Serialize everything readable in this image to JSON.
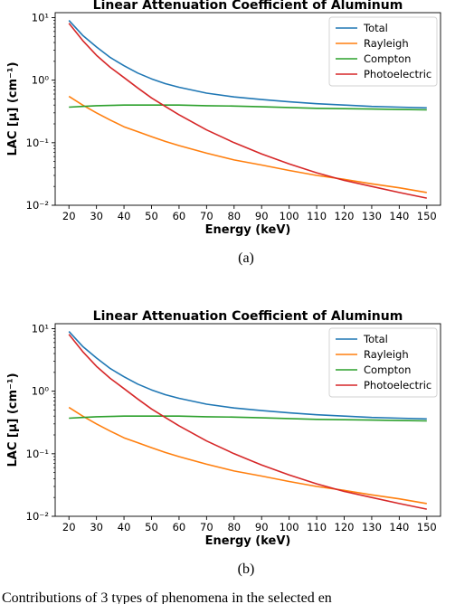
{
  "panel_labels": [
    "(a)",
    "(b)"
  ],
  "caption": "Contributions of 3 types of phenomena in the selected en",
  "colors": {
    "Total": "#1f77b4",
    "Rayleigh": "#ff7f0e",
    "Compton": "#2ca02c",
    "Photoelectric": "#d62728"
  },
  "chart_data": [
    {
      "type": "line",
      "title": "Linear Attenuation Coefficient of Aluminum",
      "xlabel": "Energy (keV)",
      "ylabel": "LAC [μ] (cm⁻¹)",
      "yscale": "log",
      "xlim": [
        15,
        155
      ],
      "ylim": [
        0.01,
        12
      ],
      "xticks": [
        20,
        30,
        40,
        50,
        60,
        70,
        80,
        90,
        100,
        110,
        120,
        130,
        140,
        150
      ],
      "yticks": [
        0.01,
        0.1,
        1,
        10
      ],
      "ytick_labels": [
        "10⁻²",
        "10⁻¹",
        "10⁰",
        "10¹"
      ],
      "legend_position": "top-right",
      "x": [
        20,
        25,
        30,
        35,
        40,
        45,
        50,
        55,
        60,
        70,
        80,
        90,
        100,
        110,
        120,
        130,
        140,
        150
      ],
      "series": [
        {
          "name": "Total",
          "values": [
            9.0,
            5.2,
            3.4,
            2.3,
            1.7,
            1.3,
            1.05,
            0.88,
            0.77,
            0.62,
            0.54,
            0.49,
            0.45,
            0.42,
            0.4,
            0.38,
            0.37,
            0.36
          ]
        },
        {
          "name": "Rayleigh",
          "values": [
            0.55,
            0.4,
            0.3,
            0.23,
            0.18,
            0.15,
            0.125,
            0.105,
            0.09,
            0.068,
            0.053,
            0.044,
            0.036,
            0.03,
            0.026,
            0.022,
            0.019,
            0.016
          ]
        },
        {
          "name": "Compton",
          "values": [
            0.37,
            0.38,
            0.39,
            0.395,
            0.4,
            0.4,
            0.4,
            0.4,
            0.4,
            0.39,
            0.385,
            0.375,
            0.365,
            0.355,
            0.35,
            0.345,
            0.34,
            0.335
          ]
        },
        {
          "name": "Photoelectric",
          "values": [
            8.1,
            4.3,
            2.5,
            1.6,
            1.1,
            0.75,
            0.52,
            0.38,
            0.28,
            0.16,
            0.1,
            0.066,
            0.046,
            0.033,
            0.025,
            0.02,
            0.016,
            0.013
          ]
        }
      ]
    },
    {
      "type": "line",
      "title": "Linear Attenuation Coefficient of Aluminum",
      "xlabel": "Energy (keV)",
      "ylabel": "LAC [μ] (cm⁻¹)",
      "yscale": "log",
      "xlim": [
        15,
        155
      ],
      "ylim": [
        0.01,
        12
      ],
      "xticks": [
        20,
        30,
        40,
        50,
        60,
        70,
        80,
        90,
        100,
        110,
        120,
        130,
        140,
        150
      ],
      "yticks": [
        0.01,
        0.1,
        1,
        10
      ],
      "ytick_labels": [
        "10⁻²",
        "10⁻¹",
        "10⁰",
        "10¹"
      ],
      "legend_position": "top-right",
      "x": [
        20,
        25,
        30,
        35,
        40,
        45,
        50,
        55,
        60,
        70,
        80,
        90,
        100,
        110,
        120,
        130,
        140,
        150
      ],
      "series": [
        {
          "name": "Total",
          "values": [
            9.0,
            5.2,
            3.4,
            2.3,
            1.7,
            1.3,
            1.05,
            0.88,
            0.77,
            0.62,
            0.54,
            0.49,
            0.45,
            0.42,
            0.4,
            0.38,
            0.37,
            0.36
          ]
        },
        {
          "name": "Rayleigh",
          "values": [
            0.55,
            0.4,
            0.3,
            0.23,
            0.18,
            0.15,
            0.125,
            0.105,
            0.09,
            0.068,
            0.053,
            0.044,
            0.036,
            0.03,
            0.026,
            0.022,
            0.019,
            0.016
          ]
        },
        {
          "name": "Compton",
          "values": [
            0.37,
            0.38,
            0.39,
            0.395,
            0.4,
            0.4,
            0.4,
            0.4,
            0.4,
            0.39,
            0.385,
            0.375,
            0.365,
            0.355,
            0.35,
            0.345,
            0.34,
            0.335
          ]
        },
        {
          "name": "Photoelectric",
          "values": [
            8.1,
            4.3,
            2.5,
            1.6,
            1.1,
            0.75,
            0.52,
            0.38,
            0.28,
            0.16,
            0.1,
            0.066,
            0.046,
            0.033,
            0.025,
            0.02,
            0.016,
            0.013
          ]
        }
      ]
    }
  ]
}
